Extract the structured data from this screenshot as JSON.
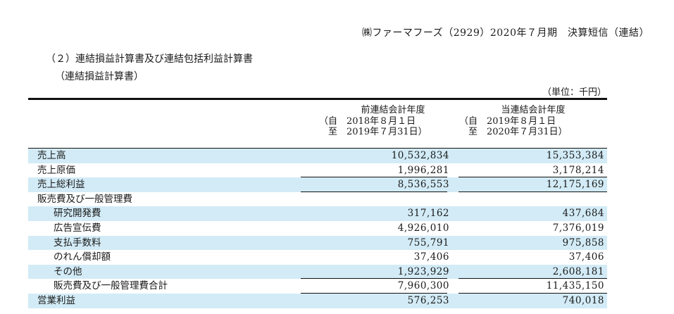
{
  "header": {
    "company_line": "㈱ファーマフーズ（2929）2020年７月期　決算短信（連結）"
  },
  "section": {
    "title": "（２）連結損益計算書及び連結包括利益計算書",
    "subtitle": "（連結損益計算書）",
    "unit": "（単位：千円）"
  },
  "periods": {
    "prior": {
      "heading": "前連結会計年度",
      "from_line": "（自　2018年８月１日",
      "to_line": "　至　2019年７月31日）"
    },
    "current": {
      "heading": "当連結会計年度",
      "from_line": "（自　2019年８月１日",
      "to_line": "　至　2020年７月31日）"
    }
  },
  "rows": [
    {
      "label": "売上高",
      "prior": "10,532,834",
      "current": "15,353,384"
    },
    {
      "label": "売上原価",
      "prior": "1,996,281",
      "current": "3,178,214"
    },
    {
      "label": "売上総利益",
      "prior": "8,536,553",
      "current": "12,175,169"
    },
    {
      "label": "販売費及び一般管理費",
      "prior": "",
      "current": ""
    },
    {
      "label": "研究開発費",
      "prior": "317,162",
      "current": "437,684"
    },
    {
      "label": "広告宣伝費",
      "prior": "4,926,010",
      "current": "7,376,019"
    },
    {
      "label": "支払手数料",
      "prior": "755,791",
      "current": "975,858"
    },
    {
      "label": "のれん償却額",
      "prior": "37,406",
      "current": "37,406"
    },
    {
      "label": "その他",
      "prior": "1,923,929",
      "current": "2,608,181"
    },
    {
      "label": "販売費及び一般管理費合計",
      "prior": "7,960,300",
      "current": "11,435,150"
    },
    {
      "label": "営業利益",
      "prior": "576,253",
      "current": "740,018"
    }
  ],
  "colors": {
    "shaded_row": "#d2ebf6"
  }
}
